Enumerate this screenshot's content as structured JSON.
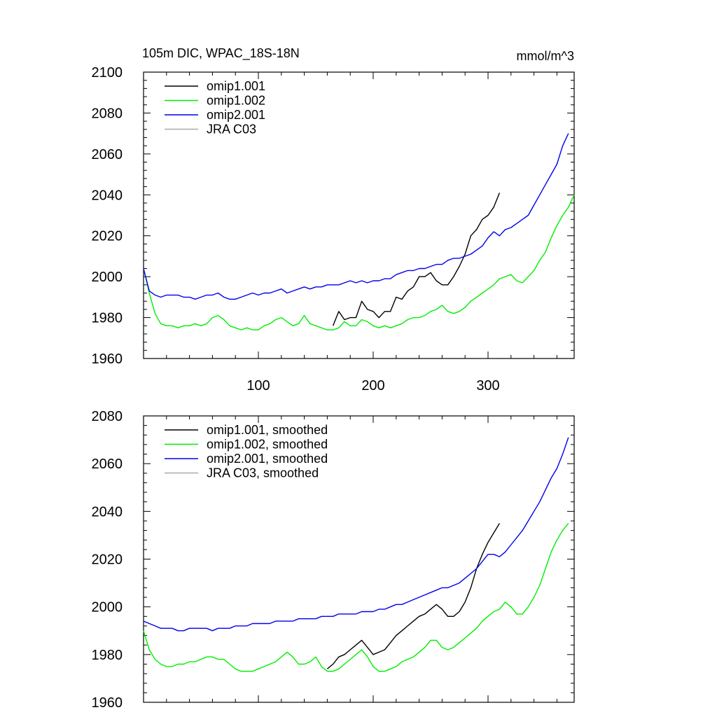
{
  "chart_data": [
    {
      "type": "line",
      "title": "105m DIC, WPAC_18S-18N",
      "units_label": "mmol/m^3",
      "xlim": [
        0,
        375
      ],
      "ylim": [
        1960,
        2100
      ],
      "x_tick_labels": [
        "100",
        "200",
        "300"
      ],
      "y_tick_labels": [
        "1960",
        "1980",
        "2000",
        "2020",
        "2040",
        "2060",
        "2080",
        "2100"
      ],
      "legend_position": "top-left",
      "series": [
        {
          "name": "omip1.001",
          "color": "#000000",
          "x": [
            165,
            170,
            175,
            180,
            185,
            190,
            195,
            200,
            205,
            210,
            215,
            220,
            225,
            230,
            235,
            240,
            245,
            250,
            255,
            260,
            265,
            270,
            275,
            280,
            285,
            290,
            295,
            300,
            305,
            310
          ],
          "y": [
            1976,
            1983,
            1979,
            1980,
            1980,
            1988,
            1984,
            1983,
            1980,
            1983,
            1983,
            1990,
            1989,
            1993,
            1995,
            2000,
            2000,
            2002,
            1998,
            1996,
            1996,
            2000,
            2005,
            2011,
            2020,
            2023,
            2028,
            2030,
            2034,
            2041
          ]
        },
        {
          "name": "omip1.002",
          "color": "#00ee00",
          "x": [
            0,
            5,
            10,
            15,
            20,
            25,
            30,
            35,
            40,
            45,
            50,
            55,
            60,
            65,
            70,
            75,
            80,
            85,
            90,
            95,
            100,
            105,
            110,
            115,
            120,
            125,
            130,
            135,
            140,
            145,
            150,
            155,
            160,
            165,
            170,
            175,
            180,
            185,
            190,
            195,
            200,
            205,
            210,
            215,
            220,
            225,
            230,
            235,
            240,
            245,
            250,
            255,
            260,
            265,
            270,
            275,
            280,
            285,
            290,
            295,
            300,
            305,
            310,
            315,
            320,
            325,
            330,
            335,
            340,
            345,
            350,
            355,
            360,
            365,
            370,
            375
          ],
          "y": [
            2004,
            1992,
            1982,
            1977,
            1976,
            1976,
            1975,
            1976,
            1976,
            1977,
            1976,
            1977,
            1980,
            1981,
            1979,
            1976,
            1975,
            1974,
            1975,
            1974,
            1974,
            1976,
            1977,
            1979,
            1980,
            1978,
            1976,
            1977,
            1981,
            1977,
            1976,
            1975,
            1974,
            1974,
            1975,
            1978,
            1976,
            1976,
            1979,
            1978,
            1976,
            1975,
            1976,
            1975,
            1976,
            1977,
            1979,
            1980,
            1980,
            1981,
            1983,
            1984,
            1986,
            1983,
            1982,
            1983,
            1985,
            1988,
            1990,
            1992,
            1994,
            1996,
            1999,
            2000,
            2001,
            1998,
            1997,
            2000,
            2003,
            2008,
            2012,
            2019,
            2025,
            2030,
            2034,
            2040
          ]
        },
        {
          "name": "omip2.001",
          "color": "#0000ee",
          "x": [
            0,
            5,
            10,
            15,
            20,
            25,
            30,
            35,
            40,
            45,
            50,
            55,
            60,
            65,
            70,
            75,
            80,
            85,
            90,
            95,
            100,
            105,
            110,
            115,
            120,
            125,
            130,
            135,
            140,
            145,
            150,
            155,
            160,
            165,
            170,
            175,
            180,
            185,
            190,
            195,
            200,
            205,
            210,
            215,
            220,
            225,
            230,
            235,
            240,
            245,
            250,
            255,
            260,
            265,
            270,
            275,
            280,
            285,
            290,
            295,
            300,
            305,
            310,
            315,
            320,
            325,
            330,
            335,
            340,
            345,
            350,
            355,
            360,
            365,
            370
          ],
          "y": [
            2004,
            1993,
            1991,
            1990,
            1991,
            1991,
            1991,
            1990,
            1990,
            1989,
            1990,
            1991,
            1991,
            1992,
            1990,
            1989,
            1989,
            1990,
            1991,
            1992,
            1991,
            1992,
            1992,
            1993,
            1994,
            1992,
            1993,
            1994,
            1995,
            1994,
            1995,
            1995,
            1996,
            1996,
            1996,
            1997,
            1998,
            1997,
            1998,
            1997,
            1998,
            1998,
            1999,
            1999,
            2001,
            2002,
            2003,
            2003,
            2004,
            2004,
            2005,
            2006,
            2006,
            2008,
            2009,
            2009,
            2010,
            2011,
            2013,
            2015,
            2019,
            2022,
            2020,
            2023,
            2024,
            2026,
            2028,
            2030,
            2035,
            2040,
            2045,
            2050,
            2055,
            2064,
            2070
          ],
          "note_unused": ""
        },
        {
          "name": "JRA C03",
          "color": "#aaaaaa",
          "x": [],
          "y": []
        }
      ]
    },
    {
      "type": "line",
      "xlim": [
        0,
        375
      ],
      "ylim": [
        1960,
        2080
      ],
      "y_tick_labels": [
        "1960",
        "1980",
        "2000",
        "2020",
        "2040",
        "2060",
        "2080"
      ],
      "legend_position": "top-left",
      "series": [
        {
          "name": "omip1.001, smoothed",
          "color": "#000000",
          "x": [
            160,
            165,
            170,
            175,
            180,
            185,
            190,
            195,
            200,
            205,
            210,
            215,
            220,
            225,
            230,
            235,
            240,
            245,
            250,
            255,
            260,
            265,
            270,
            275,
            280,
            285,
            290,
            295,
            300,
            305,
            310
          ],
          "y": [
            1974,
            1976,
            1979,
            1980,
            1982,
            1984,
            1986,
            1983,
            1980,
            1981,
            1982,
            1985,
            1988,
            1990,
            1992,
            1994,
            1996,
            1997,
            1999,
            2001,
            1999,
            1996,
            1996,
            1998,
            2002,
            2008,
            2016,
            2022,
            2027,
            2031,
            2035
          ]
        },
        {
          "name": "omip1.002, smoothed",
          "color": "#00ee00",
          "x": [
            0,
            5,
            10,
            15,
            20,
            25,
            30,
            35,
            40,
            45,
            50,
            55,
            60,
            65,
            70,
            75,
            80,
            85,
            90,
            95,
            100,
            105,
            110,
            115,
            120,
            125,
            130,
            135,
            140,
            145,
            150,
            155,
            160,
            165,
            170,
            175,
            180,
            185,
            190,
            195,
            200,
            205,
            210,
            215,
            220,
            225,
            230,
            235,
            240,
            245,
            250,
            255,
            260,
            265,
            270,
            275,
            280,
            285,
            290,
            295,
            300,
            305,
            310,
            315,
            320,
            325,
            330,
            335,
            340,
            345,
            350,
            355,
            360,
            365,
            370
          ],
          "y": [
            1990,
            1982,
            1978,
            1976,
            1975,
            1975,
            1976,
            1976,
            1977,
            1977,
            1978,
            1979,
            1979,
            1978,
            1978,
            1976,
            1974,
            1973,
            1973,
            1973,
            1974,
            1975,
            1976,
            1977,
            1979,
            1981,
            1979,
            1976,
            1976,
            1977,
            1979,
            1975,
            1973,
            1973,
            1974,
            1976,
            1978,
            1980,
            1982,
            1979,
            1975,
            1973,
            1973,
            1974,
            1975,
            1977,
            1978,
            1979,
            1981,
            1983,
            1986,
            1986,
            1983,
            1982,
            1983,
            1985,
            1987,
            1989,
            1991,
            1994,
            1996,
            1998,
            1999,
            2002,
            2000,
            1997,
            1997,
            2000,
            2004,
            2009,
            2016,
            2023,
            2028,
            2032,
            2035
          ]
        },
        {
          "name": "omip2.001, smoothed",
          "color": "#0000ee",
          "x": [
            0,
            5,
            10,
            15,
            20,
            25,
            30,
            35,
            40,
            45,
            50,
            55,
            60,
            65,
            70,
            75,
            80,
            85,
            90,
            95,
            100,
            105,
            110,
            115,
            120,
            125,
            130,
            135,
            140,
            145,
            150,
            155,
            160,
            165,
            170,
            175,
            180,
            185,
            190,
            195,
            200,
            205,
            210,
            215,
            220,
            225,
            230,
            235,
            240,
            245,
            250,
            255,
            260,
            265,
            270,
            275,
            280,
            285,
            290,
            295,
            300,
            305,
            310,
            315,
            320,
            325,
            330,
            335,
            340,
            345,
            350,
            355,
            360,
            365,
            370
          ],
          "y": [
            1994,
            1993,
            1992,
            1991,
            1991,
            1991,
            1990,
            1990,
            1991,
            1991,
            1991,
            1991,
            1990,
            1991,
            1991,
            1991,
            1992,
            1992,
            1992,
            1993,
            1993,
            1993,
            1993,
            1994,
            1994,
            1994,
            1994,
            1995,
            1995,
            1995,
            1995,
            1996,
            1996,
            1996,
            1997,
            1997,
            1997,
            1997,
            1998,
            1998,
            1998,
            1999,
            1999,
            2000,
            2001,
            2001,
            2002,
            2003,
            2004,
            2005,
            2006,
            2007,
            2008,
            2008,
            2009,
            2010,
            2012,
            2014,
            2016,
            2019,
            2022,
            2022,
            2021,
            2023,
            2026,
            2029,
            2032,
            2036,
            2040,
            2044,
            2049,
            2054,
            2058,
            2064,
            2071
          ]
        },
        {
          "name": "JRA C03, smoothed",
          "color": "#aaaaaa",
          "x": [],
          "y": []
        }
      ]
    }
  ]
}
